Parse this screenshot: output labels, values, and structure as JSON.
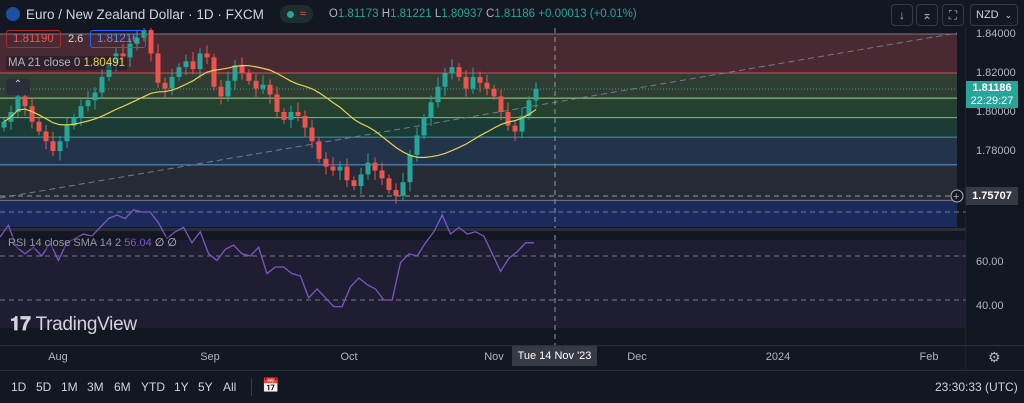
{
  "header": {
    "title": "Euro / New Zealand Dollar · 1D · FXCM",
    "ohlc": {
      "o_label": "O",
      "o": "1.81173",
      "h_label": "H",
      "h": "1.81221",
      "l_label": "L",
      "l": "1.80937",
      "c_label": "C",
      "c": "1.81186",
      "change": "+0.00013 (+0.01%)"
    },
    "currency": "NZD"
  },
  "quote": {
    "sell": "1.81190",
    "spread": "2.6",
    "buy": "1.81216"
  },
  "ma_legend": {
    "label": "MA 21 close 0",
    "value": "1.80491"
  },
  "rsi_legend": {
    "label": "RSI 14 close SMA 14 2",
    "value": "56.04",
    "extra": "∅ ∅"
  },
  "price_axis": {
    "ticks": [
      "1.84000",
      "1.82000",
      "1.80000",
      "1.78000"
    ],
    "last_price": "1.81186",
    "countdown": "22:29:27",
    "crosshair_price": "1.75707"
  },
  "rsi_axis": {
    "ticks": [
      "60.00",
      "40.00"
    ]
  },
  "time_axis": {
    "ticks": [
      "Aug",
      "Sep",
      "Oct",
      "Nov",
      "Dec",
      "2024",
      "Feb"
    ],
    "crosshair_date": "Tue 14 Nov '23"
  },
  "ranges": [
    "1D",
    "5D",
    "1M",
    "3M",
    "6M",
    "YTD",
    "1Y",
    "5Y",
    "All"
  ],
  "clock": "23:30:33 (UTC)",
  "watermark": "TradingView",
  "colors": {
    "up": "#26a69a",
    "down": "#ef5350",
    "ma": "#e8d44d",
    "rsi": "#7e57c2"
  },
  "chart_data": {
    "type": "candlestick",
    "ylim": [
      1.75,
      1.84
    ],
    "closes": [
      1.795,
      1.8,
      1.808,
      1.803,
      1.795,
      1.79,
      1.785,
      1.78,
      1.785,
      1.793,
      1.797,
      1.803,
      1.806,
      1.81,
      1.818,
      1.825,
      1.83,
      1.828,
      1.835,
      1.838,
      1.842,
      1.83,
      1.815,
      1.812,
      1.818,
      1.823,
      1.826,
      1.822,
      1.83,
      1.828,
      1.813,
      1.808,
      1.816,
      1.824,
      1.82,
      1.816,
      1.812,
      1.814,
      1.809,
      1.8,
      1.796,
      1.8,
      1.798,
      1.792,
      1.785,
      1.776,
      1.772,
      1.77,
      1.772,
      1.765,
      1.762,
      1.768,
      1.774,
      1.77,
      1.766,
      1.76,
      1.757,
      1.764,
      1.778,
      1.788,
      1.797,
      1.805,
      1.813,
      1.82,
      1.823,
      1.818,
      1.812,
      1.818,
      1.815,
      1.812,
      1.808,
      1.8,
      1.793,
      1.79,
      1.798,
      1.806,
      1.8119
    ],
    "fib_levels": [
      1.84,
      1.82,
      1.8071,
      1.7971,
      1.7871,
      1.7729,
      1.7547
    ],
    "rsi": [
      58.6,
      64,
      54,
      51,
      54,
      50,
      56,
      48,
      56,
      58,
      60,
      59,
      63,
      67,
      68.6,
      67,
      71,
      70,
      70,
      65,
      58,
      61,
      63,
      56,
      61,
      51,
      48,
      53,
      55,
      51,
      50,
      54,
      42,
      45,
      45,
      42,
      41,
      31,
      35,
      31,
      27,
      27,
      36,
      40,
      37,
      35,
      30,
      30,
      47,
      51,
      50,
      56,
      61,
      68.6,
      60,
      63,
      60,
      61,
      59,
      51,
      43,
      49,
      52,
      56,
      56
    ],
    "rsi_ylim": [
      20,
      80
    ],
    "rsi_levels": [
      70,
      50,
      30
    ]
  }
}
